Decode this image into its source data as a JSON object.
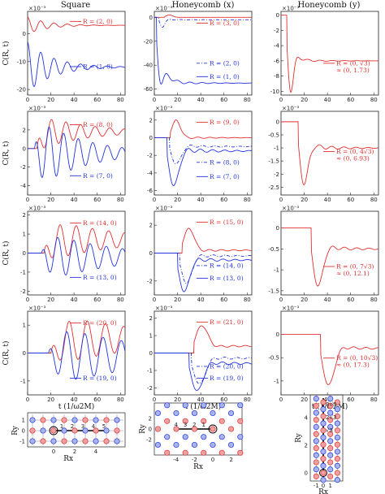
{
  "chart_data": {
    "type": "line",
    "columns": [
      {
        "title": "Square",
        "lattice": "square"
      },
      {
        "title": "Honeycomb (x)",
        "lattice": "honeycomb-x"
      },
      {
        "title": "Honeycomb (y)",
        "lattice": "honeycomb-y"
      }
    ],
    "ylabel": "C(R, t)",
    "xlabel": "t (1/ω2M)",
    "xlim": [
      0,
      84
    ],
    "xticks": [
      0,
      20,
      40,
      60,
      80
    ],
    "scale_label": "×10⁻³",
    "colors": {
      "red": "#e03030",
      "blue": "#2233dd",
      "axis": "#222222",
      "lattice_red": "#f0a0a0",
      "lattice_blue": "#a8b4ee"
    },
    "panels": [
      {
        "id": "r1c1",
        "ylim": [
          -22,
          8
        ],
        "yticks": [
          0,
          -10,
          -20
        ],
        "curves": [
          {
            "label": "R = (2, 0)",
            "color": "red",
            "style": "solid",
            "kind": "osc",
            "p": {
              "t0": 0,
              "amp": 3,
              "base": 3,
              "freq": 0.55,
              "tau": 18,
              "rise": 0
            }
          },
          {
            "label": "R = (1, 0)",
            "color": "blue",
            "style": "solid",
            "kind": "osc",
            "p": {
              "t0": 0,
              "amp": 9,
              "base": -12,
              "freq": 0.55,
              "tau": 22,
              "rise": 0
            }
          }
        ],
        "legend": [
          {
            "text": "R = (2, 0)",
            "color": "red",
            "style": "solid",
            "y": 0.12
          },
          {
            "text": "R = (1, 0)",
            "color": "blue",
            "style": "solid",
            "y": 0.66
          }
        ]
      },
      {
        "id": "r1c2",
        "ylim": [
          -65,
          5
        ],
        "yticks": [
          0,
          -20,
          -40,
          -60
        ],
        "curves": [
          {
            "label": "R = (3, 0)",
            "color": "red",
            "style": "solid",
            "kind": "pulse",
            "p": {
              "t0": 9,
              "amp": 2,
              "base": 0,
              "width": 4,
              "osc": 0
            }
          },
          {
            "label": "R = (2, 0)",
            "color": "blue",
            "style": "dashdot",
            "kind": "pulse",
            "p": {
              "t0": 4,
              "amp": -8,
              "base": -2,
              "width": 3,
              "osc": 0.4
            }
          },
          {
            "label": "R = (1, 0)",
            "color": "blue",
            "style": "solid",
            "kind": "pulse",
            "p": {
              "t0": 2,
              "amp": -55,
              "base": -55,
              "width": 4,
              "osc": 0.3
            }
          }
        ],
        "legend": [
          {
            "text": "R = (3, 0)",
            "color": "red",
            "style": "solid",
            "y": 0.14
          },
          {
            "text": "R = (2, 0)",
            "color": "blue",
            "style": "dashdot",
            "y": 0.62
          },
          {
            "text": "R = (1, 0)",
            "color": "blue",
            "style": "solid",
            "y": 0.78
          }
        ]
      },
      {
        "id": "r1c3",
        "ylim": [
          -10.5,
          0.5
        ],
        "yticks": [
          0,
          -2,
          -4,
          -6,
          -8,
          -10
        ],
        "curves": [
          {
            "label": "R = (0, √3) ≈ (0, 1.73)",
            "color": "red",
            "style": "solid",
            "kind": "pulse",
            "p": {
              "t0": 5,
              "amp": -10,
              "base": -6,
              "width": 3.5,
              "osc": 0.2
            }
          }
        ],
        "legend": [
          {
            "text": "R = (0, √3)",
            "sub": "≈ (0, 1.73)",
            "color": "red",
            "style": "solid",
            "y": 0.62
          }
        ]
      },
      {
        "id": "r2c1",
        "ylim": [
          -5,
          4
        ],
        "yticks": [
          -4,
          -2,
          0,
          2
        ],
        "curves": [
          {
            "label": "R = (8, 0)",
            "color": "red",
            "style": "solid",
            "kind": "osc",
            "p": {
              "t0": 8,
              "amp": 2,
              "base": 1.8,
              "freq": 0.5,
              "tau": 40,
              "rise": 4
            }
          },
          {
            "label": "R = (7, 0)",
            "color": "blue",
            "style": "solid",
            "kind": "osc",
            "p": {
              "t0": 6,
              "amp": 4,
              "base": -0.5,
              "freq": 0.5,
              "tau": 40,
              "rise": 4
            }
          }
        ],
        "legend": [
          {
            "text": "R = (8, 0)",
            "color": "red",
            "style": "solid",
            "y": 0.16
          },
          {
            "text": "R = (7, 0)",
            "color": "blue",
            "style": "solid",
            "y": 0.77
          }
        ]
      },
      {
        "id": "r2c2",
        "ylim": [
          -6.5,
          3
        ],
        "yticks": [
          -6,
          -4,
          -2,
          0,
          2
        ],
        "curves": [
          {
            "label": "R = (9, 0)",
            "color": "red",
            "style": "solid",
            "kind": "pulse",
            "p": {
              "t0": 14,
              "amp": 2,
              "base": 0,
              "width": 5,
              "osc": 0.6
            }
          },
          {
            "label": "R = (8, 0)",
            "color": "blue",
            "style": "dashdot",
            "kind": "pulse",
            "p": {
              "t0": 13,
              "amp": -3,
              "base": -1,
              "width": 6,
              "osc": 0.5
            }
          },
          {
            "label": "R = (7, 0)",
            "color": "blue",
            "style": "solid",
            "kind": "pulse",
            "p": {
              "t0": 11,
              "amp": -5.5,
              "base": -1.5,
              "width": 6,
              "osc": 0.5
            }
          }
        ],
        "legend": [
          {
            "text": "R = (9, 0)",
            "color": "red",
            "style": "solid",
            "y": 0.13
          },
          {
            "text": "R = (8, 0)",
            "color": "blue",
            "style": "dashdot",
            "y": 0.61
          },
          {
            "text": "R = (7, 0)",
            "color": "blue",
            "style": "solid",
            "y": 0.78
          }
        ]
      },
      {
        "id": "r2c3",
        "ylim": [
          -2.8,
          0.4
        ],
        "yticks": [
          0,
          -0.5,
          -1,
          -1.5,
          -2,
          -2.5
        ],
        "curves": [
          {
            "label": "R = (0, 4√3) ≈ (0, 6.93)",
            "color": "red",
            "style": "solid",
            "kind": "pulse",
            "p": {
              "t0": 15,
              "amp": -2.4,
              "base": -1,
              "width": 5,
              "osc": 0.4
            }
          }
        ],
        "legend": [
          {
            "text": "R = (0, 4√3)",
            "sub": "≈ (0, 6.93)",
            "color": "red",
            "style": "solid",
            "y": 0.48
          }
        ]
      },
      {
        "id": "r3c1",
        "ylim": [
          -2.2,
          2.2
        ],
        "yticks": [
          -2,
          -1,
          0,
          1,
          2
        ],
        "curves": [
          {
            "label": "R = (14, 0)",
            "color": "red",
            "style": "solid",
            "kind": "osc",
            "p": {
              "t0": 14,
              "amp": 1.2,
              "base": 0.7,
              "freq": 0.45,
              "tau": 60,
              "rise": 6
            }
          },
          {
            "label": "R = (13, 0)",
            "color": "blue",
            "style": "solid",
            "kind": "osc",
            "p": {
              "t0": 12,
              "amp": 1.4,
              "base": -0.2,
              "freq": 0.45,
              "tau": 60,
              "rise": 6
            }
          }
        ],
        "legend": [
          {
            "text": "R = (14, 0)",
            "color": "red",
            "style": "solid",
            "y": 0.14
          },
          {
            "text": "R = (13, 0)",
            "color": "blue",
            "style": "solid",
            "y": 0.79
          }
        ]
      },
      {
        "id": "r3c2",
        "ylim": [
          -3,
          3
        ],
        "yticks": [
          -2,
          0,
          2
        ],
        "curves": [
          {
            "label": "R = (15, 0)",
            "color": "red",
            "style": "solid",
            "kind": "pulse",
            "p": {
              "t0": 24,
              "amp": 1.8,
              "base": 0.2,
              "width": 6,
              "osc": 0.5
            }
          },
          {
            "label": "R = (14, 0)",
            "color": "blue",
            "style": "dashdot",
            "kind": "pulse",
            "p": {
              "t0": 22,
              "amp": -2.2,
              "base": -0.2,
              "width": 6,
              "osc": 0.5
            }
          },
          {
            "label": "R = (13, 0)",
            "color": "blue",
            "style": "solid",
            "kind": "pulse",
            "p": {
              "t0": 20,
              "amp": -2.8,
              "base": -0.5,
              "width": 6,
              "osc": 0.5
            }
          }
        ],
        "legend": [
          {
            "text": "R = (15, 0)",
            "color": "red",
            "style": "solid",
            "y": 0.13
          },
          {
            "text": "R = (14, 0)",
            "color": "blue",
            "style": "dashdot",
            "y": 0.65
          },
          {
            "text": "R = (13, 0)",
            "color": "blue",
            "style": "solid",
            "y": 0.8
          }
        ]
      },
      {
        "id": "r3c3",
        "ylim": [
          -1.6,
          0.4
        ],
        "yticks": [
          0,
          -0.5,
          -1,
          -1.5
        ],
        "curves": [
          {
            "label": "R = (0, 7√3) ≈ (0, 12.1)",
            "color": "red",
            "style": "solid",
            "kind": "pulse",
            "p": {
              "t0": 26,
              "amp": -1.4,
              "base": -0.5,
              "width": 6,
              "osc": 0.35
            }
          }
        ],
        "legend": [
          {
            "text": "R = (0, 7√3)",
            "sub": "≈ (0, 12.1)",
            "color": "red",
            "style": "solid",
            "y": 0.66
          }
        ]
      },
      {
        "id": "r4c1",
        "ylim": [
          -1.5,
          1.5
        ],
        "yticks": [
          -1,
          0,
          1
        ],
        "curves": [
          {
            "label": "R = (20, 0)",
            "color": "red",
            "style": "solid",
            "kind": "osc",
            "p": {
              "t0": 20,
              "amp": 1,
              "base": 0.5,
              "freq": 0.4,
              "tau": 80,
              "rise": 8
            }
          },
          {
            "label": "R = (19, 0)",
            "color": "blue",
            "style": "solid",
            "kind": "osc",
            "p": {
              "t0": 18,
              "amp": 1.2,
              "base": -0.1,
              "freq": 0.4,
              "tau": 80,
              "rise": 8
            }
          }
        ],
        "legend": [
          {
            "text": "R = (20, 0)",
            "color": "red",
            "style": "solid",
            "y": 0.14
          },
          {
            "text": "R = (19, 0)",
            "color": "blue",
            "style": "solid",
            "y": 0.8
          }
        ]
      },
      {
        "id": "r4c2",
        "ylim": [
          -2.4,
          2.4
        ],
        "yticks": [
          -2,
          -1,
          0,
          1,
          2
        ],
        "curves": [
          {
            "label": "R = (21, 0)",
            "color": "red",
            "style": "solid",
            "kind": "pulse",
            "p": {
              "t0": 34,
              "amp": 1.6,
              "base": 0.4,
              "width": 7,
              "osc": 0.45
            }
          },
          {
            "label": "R = (20, 0)",
            "color": "blue",
            "style": "dashdot",
            "kind": "pulse",
            "p": {
              "t0": 32,
              "amp": -1.8,
              "base": -0.3,
              "width": 7,
              "osc": 0.45
            }
          },
          {
            "label": "R = (19, 0)",
            "color": "blue",
            "style": "solid",
            "kind": "pulse",
            "p": {
              "t0": 30,
              "amp": -2.2,
              "base": -0.6,
              "width": 7,
              "osc": 0.45
            }
          }
        ],
        "legend": [
          {
            "text": "R = (21, 0)",
            "color": "red",
            "style": "solid",
            "y": 0.13
          },
          {
            "text": "R = (20, 0)",
            "color": "blue",
            "style": "dashdot",
            "y": 0.66
          },
          {
            "text": "R = (19, 0)",
            "color": "blue",
            "style": "solid",
            "y": 0.8
          }
        ]
      },
      {
        "id": "r4c3",
        "ylim": [
          -1.3,
          0.5
        ],
        "yticks": [
          0,
          -0.5,
          -1
        ],
        "curves": [
          {
            "label": "R = (0, 10√3) ≈ (0, 17.3)",
            "color": "red",
            "style": "solid",
            "kind": "pulse",
            "p": {
              "t0": 34,
              "amp": -1.1,
              "base": -0.3,
              "width": 7,
              "osc": 0.3
            }
          }
        ],
        "legend": [
          {
            "text": "R = (0, 10√3)",
            "sub": "≈ (0, 17.3)",
            "color": "red",
            "style": "solid",
            "y": 0.56
          }
        ]
      }
    ],
    "insets": [
      {
        "id": "lat-square",
        "xlabel": "Rx",
        "ylabel": "Ry",
        "xticks": [
          0,
          2,
          4
        ],
        "yticks": [
          -1,
          0,
          1
        ],
        "marks": [
          "1",
          "2",
          "3",
          "4",
          "5"
        ]
      },
      {
        "id": "lat-hcx",
        "xlabel": "Rx",
        "ylabel": "Ry",
        "xticks": [
          -4,
          -2,
          0,
          2
        ],
        "yticks": [
          -2,
          0,
          2
        ],
        "marks": [
          "4",
          "3",
          "2",
          "1"
        ]
      },
      {
        "id": "lat-hcy",
        "xlabel": "Rx",
        "ylabel": "Ry",
        "xticks": [
          -1,
          0,
          1
        ],
        "yticks": [
          0,
          2,
          4
        ],
        "marks": [
          "3√3",
          "2√3",
          "√3"
        ]
      }
    ]
  }
}
